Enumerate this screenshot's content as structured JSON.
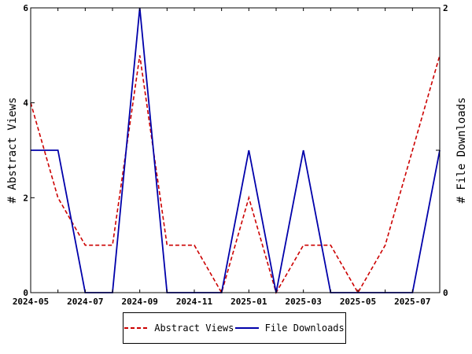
{
  "chart_data": {
    "type": "line",
    "x": [
      "2024-05",
      "2024-06",
      "2024-07",
      "2024-08",
      "2024-09",
      "2024-10",
      "2024-11",
      "2024-12",
      "2025-01",
      "2025-02",
      "2025-03",
      "2025-04",
      "2025-05",
      "2025-06",
      "2025-07",
      "2025-08"
    ],
    "x_tick_labels": [
      "2024-05",
      "2024-07",
      "2024-09",
      "2024-11",
      "2025-01",
      "2025-03",
      "2025-05",
      "2025-07"
    ],
    "ylabel_left": "# Abstract Views",
    "ylabel_right": "# File Downloads",
    "ylim_left": [
      0,
      6
    ],
    "ylim_right": [
      0,
      2
    ],
    "y_ticks_left": [
      "0",
      "2",
      "4",
      "6"
    ],
    "y_ticks_right": [
      "0",
      "1",
      "2"
    ],
    "grid": false,
    "legend_position": "bottom",
    "series": [
      {
        "name": "Abstract Views",
        "axis": "left",
        "color": "#cc0000",
        "style": "dashed",
        "values": [
          4,
          2,
          1,
          1,
          5,
          1,
          1,
          0,
          2,
          0,
          1,
          1,
          0,
          1,
          3,
          5
        ]
      },
      {
        "name": "File Downloads",
        "axis": "right",
        "color": "#0000aa",
        "style": "solid",
        "values": [
          1,
          1,
          0,
          0,
          2,
          0,
          0,
          0,
          1,
          0,
          1,
          0,
          0,
          0,
          0,
          1
        ]
      }
    ]
  }
}
